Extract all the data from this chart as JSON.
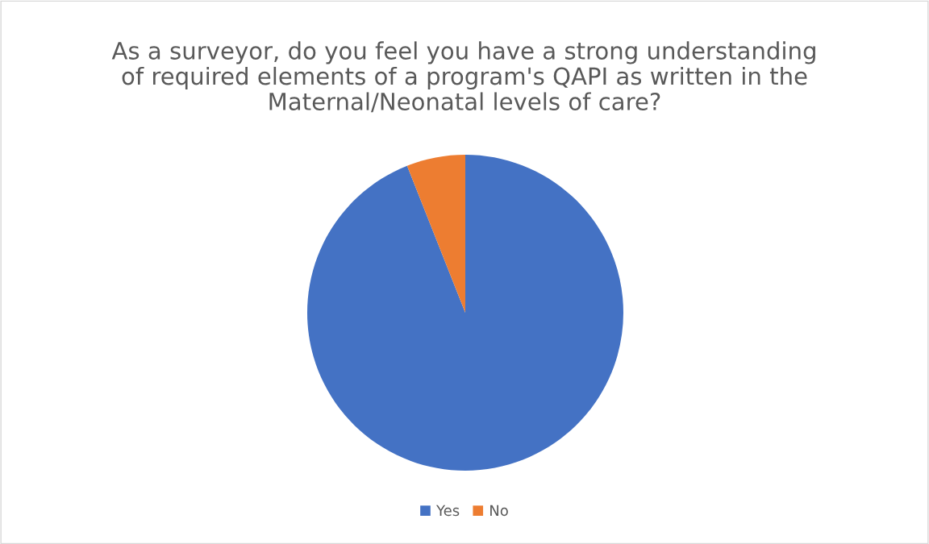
{
  "chart_data": {
    "type": "pie",
    "title": "As a surveyor, do you feel you have a strong understanding of required elements of a program's QAPI as written in the Maternal/Neonatal levels of care?",
    "categories": [
      "Yes",
      "No"
    ],
    "values": [
      94,
      6
    ],
    "colors": [
      "#4472c4",
      "#ed7d31"
    ],
    "legend": "bottom"
  }
}
